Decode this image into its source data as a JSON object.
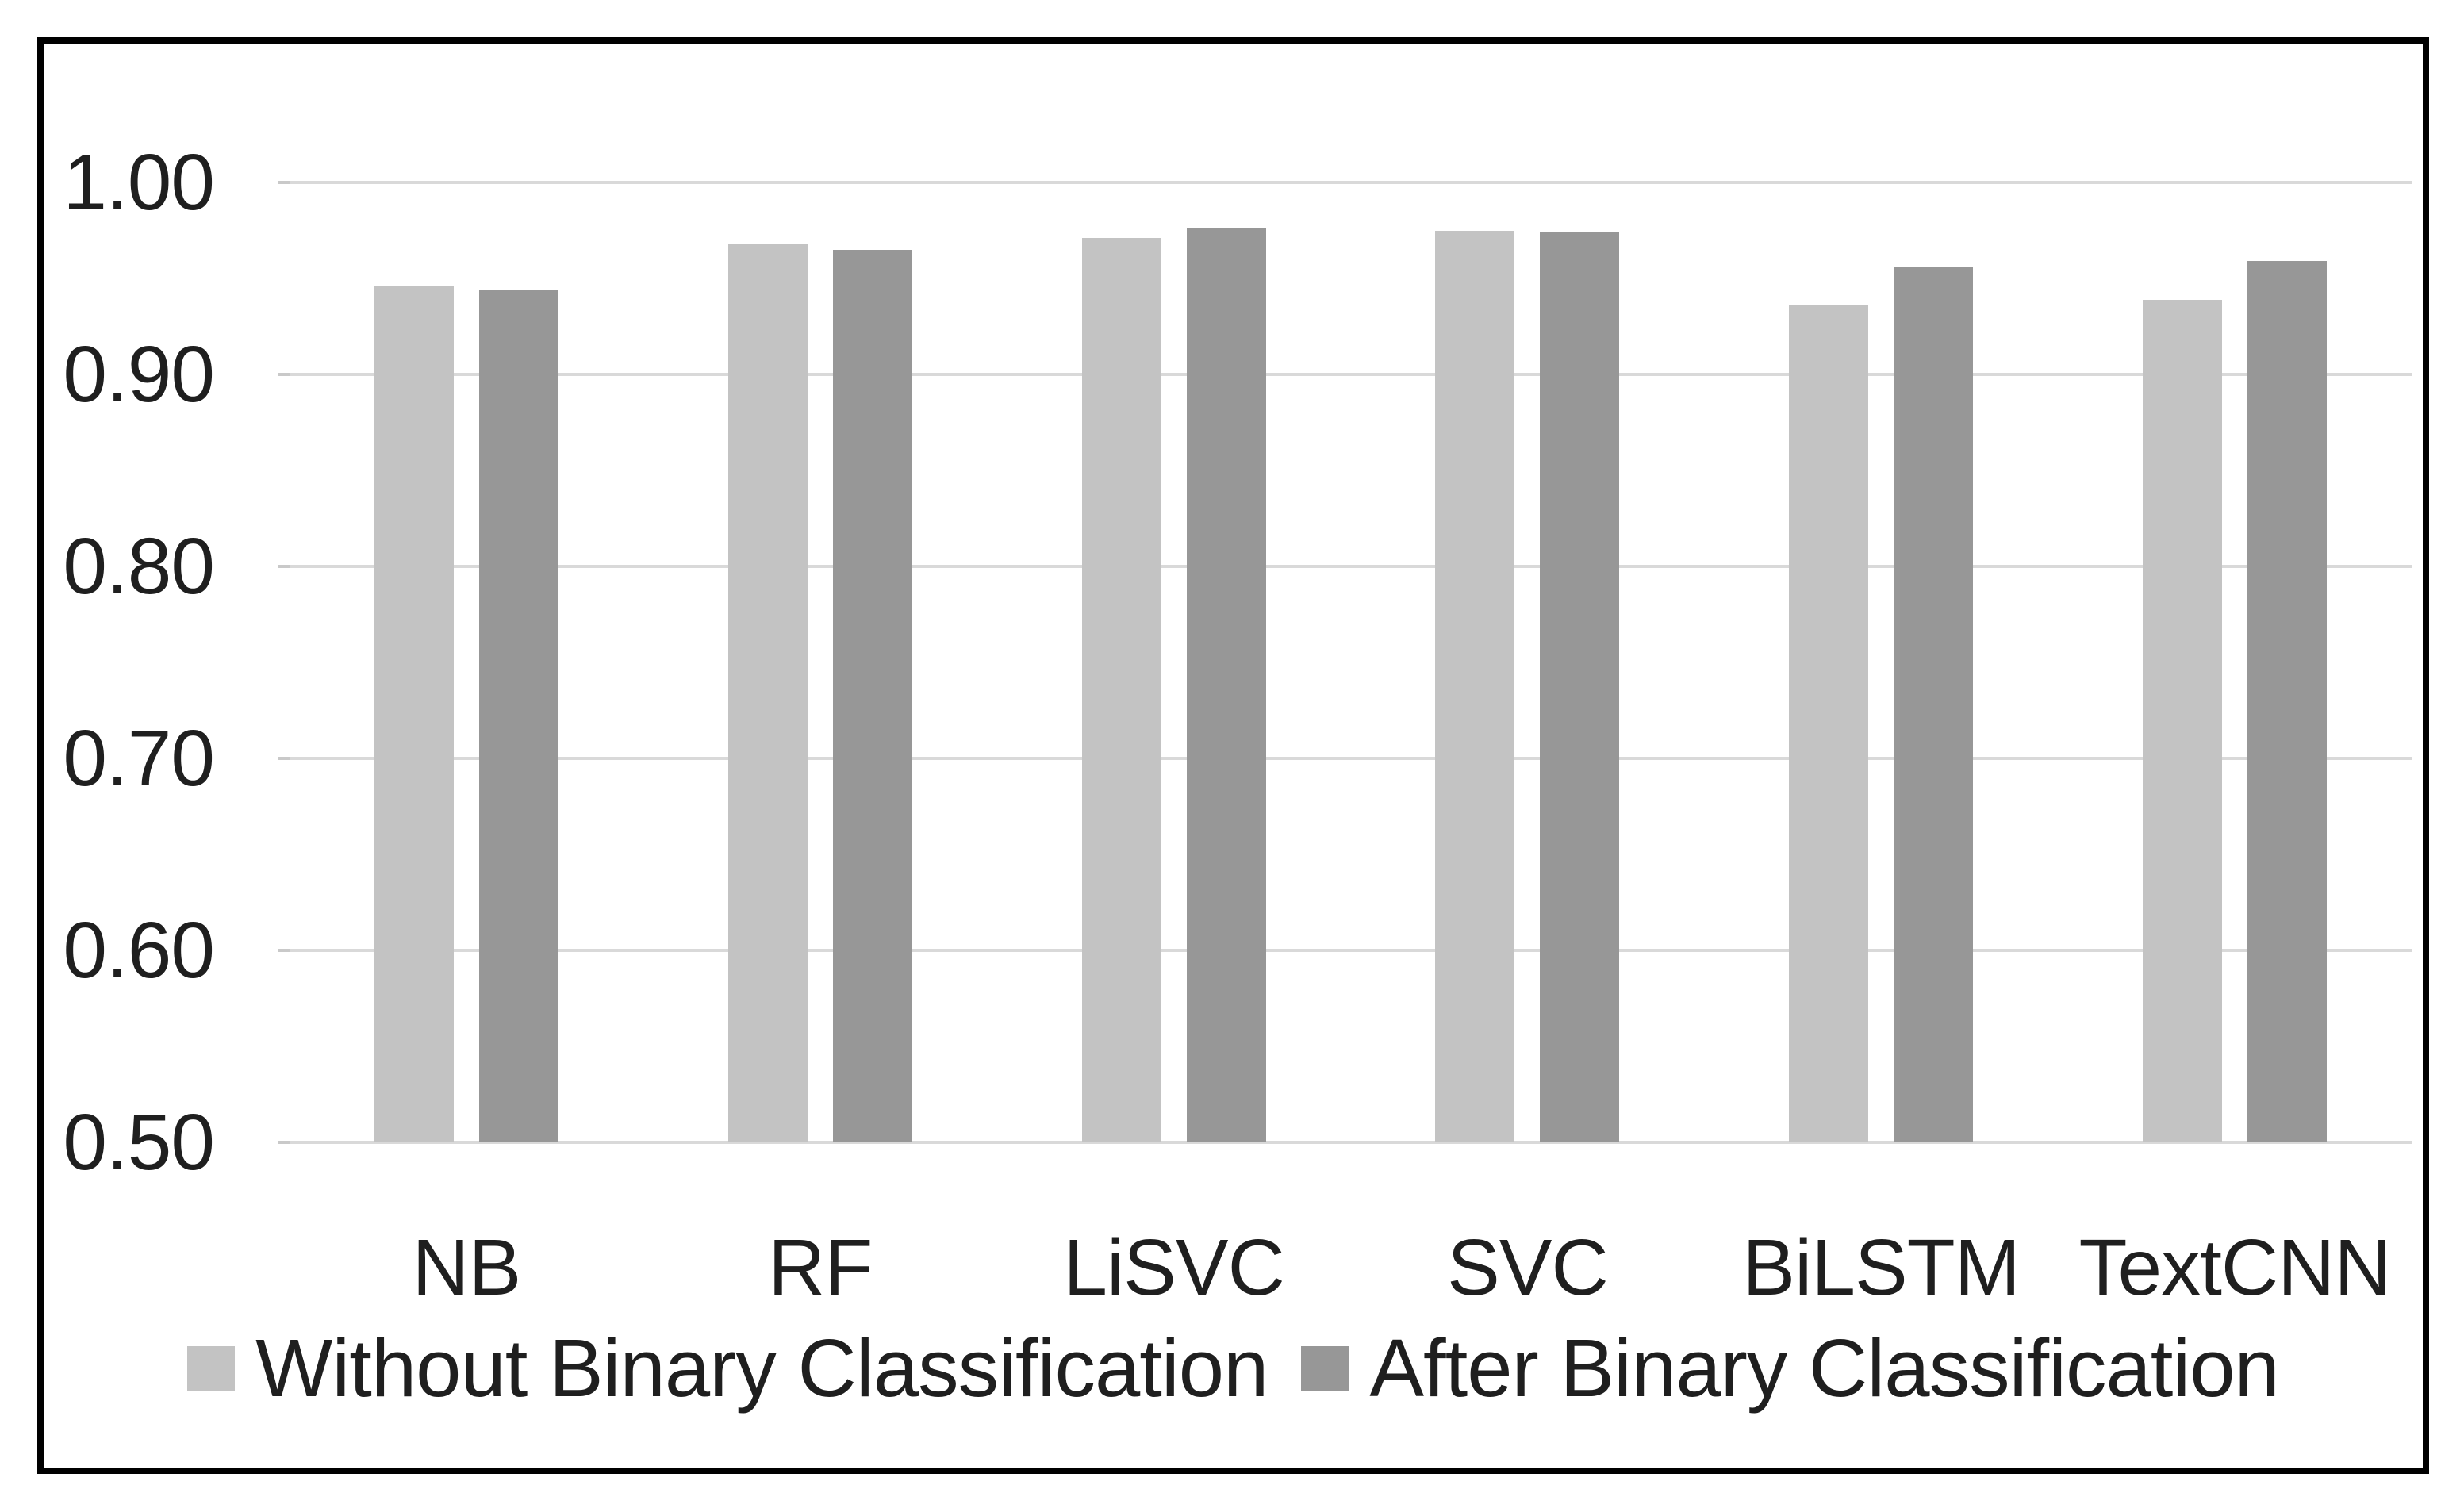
{
  "figure": {
    "background_color": "#ffffff",
    "frame_border_color": "#000000",
    "gridline_color": "#d9d9d9",
    "text_color": "#1f1f1f"
  },
  "chart_data": {
    "type": "bar",
    "title": "",
    "xlabel": "",
    "ylabel": "",
    "categories": [
      "NB",
      "RF",
      "LiSVC",
      "SVC",
      "BiLSTM",
      "TextCNN"
    ],
    "series": [
      {
        "name": "Without Binary Classification",
        "color": "#c3c3c3",
        "values": [
          0.946,
          0.968,
          0.971,
          0.975,
          0.936,
          0.939
        ]
      },
      {
        "name": "After Binary Classification",
        "color": "#979797",
        "values": [
          0.944,
          0.965,
          0.976,
          0.974,
          0.956,
          0.959
        ]
      }
    ],
    "ylim": [
      0.5,
      1.0
    ],
    "ytick_labels": [
      "1.00",
      "0.90",
      "0.80",
      "0.70",
      "0.60",
      "0.50"
    ],
    "grid": "horizontal",
    "legend_position": "bottom"
  }
}
